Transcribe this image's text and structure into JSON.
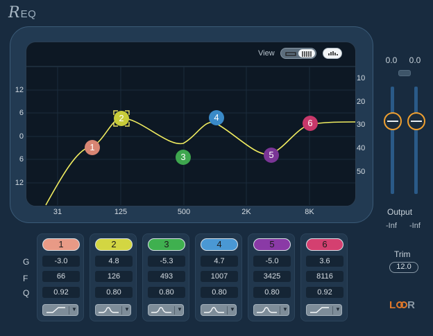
{
  "app": {
    "logo_script": "R",
    "logo_text": "EQ"
  },
  "graph": {
    "view_label": "View",
    "gain_ticks_left": [
      "12",
      "6",
      "0",
      "6",
      "12"
    ],
    "db_ticks_right": [
      "10",
      "20",
      "30",
      "40",
      "50"
    ],
    "freq_ticks": [
      "31",
      "125",
      "500",
      "2K",
      "8K"
    ],
    "curve_color": "#f0ec60"
  },
  "nodes": [
    {
      "label": "1",
      "color": "#d88573"
    },
    {
      "label": "2",
      "color": "#c8cc3a",
      "selected": true
    },
    {
      "label": "3",
      "color": "#3ea64e"
    },
    {
      "label": "4",
      "color": "#3a8ac8"
    },
    {
      "label": "5",
      "color": "#7a3596"
    },
    {
      "label": "6",
      "color": "#c8386a"
    }
  ],
  "bands": [
    {
      "label": "1",
      "gain": "-3.0",
      "freq": "66",
      "q": "0.92",
      "color": "#e89a86",
      "shape": "low-shelf"
    },
    {
      "label": "2",
      "gain": "4.8",
      "freq": "126",
      "q": "0.80",
      "color": "#d3d642",
      "shape": "bell"
    },
    {
      "label": "3",
      "gain": "-5.3",
      "freq": "493",
      "q": "0.80",
      "color": "#3fb04f",
      "shape": "bell"
    },
    {
      "label": "4",
      "gain": "4.7",
      "freq": "1007",
      "q": "0.80",
      "color": "#4a98d4",
      "shape": "bell"
    },
    {
      "label": "5",
      "gain": "-5.0",
      "freq": "3425",
      "q": "0.80",
      "color": "#8a3aa6",
      "shape": "bell"
    },
    {
      "label": "6",
      "gain": "3.6",
      "freq": "8116",
      "q": "0.92",
      "color": "#d44070",
      "shape": "high-shelf"
    }
  ],
  "row_labels": {
    "gain": "G",
    "freq": "F",
    "q": "Q"
  },
  "output": {
    "peak_left": "0.0",
    "peak_right": "0.0",
    "label": "Output",
    "level_left": "-Inf",
    "level_right": "-Inf",
    "knob_color": "#f0a030",
    "track_color": "#2a5a88"
  },
  "trim": {
    "label": "Trim",
    "value": "12.0"
  },
  "link": {
    "left": "L",
    "right": "R",
    "left_color": "#e0782a",
    "right_color": "#8c9aa6"
  }
}
